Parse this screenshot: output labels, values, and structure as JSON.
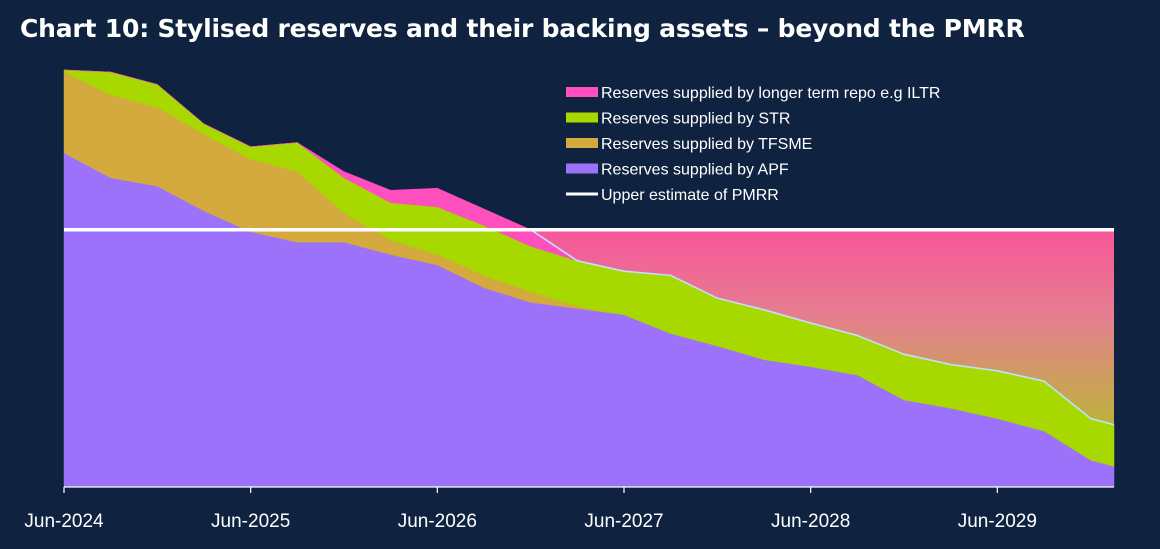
{
  "chart_data": {
    "type": "area",
    "title": "Chart 10: Stylised reserves and their backing assets – beyond the PMRR",
    "xlabel": "",
    "ylabel": "",
    "x_tick_labels": [
      "Jun-2024",
      "Jun-2025",
      "Jun-2026",
      "Jun-2027",
      "Jun-2028",
      "Jun-2029"
    ],
    "x_tick_positions": [
      0,
      12,
      24,
      36,
      48,
      60
    ],
    "x": [
      0,
      3,
      6,
      9,
      12,
      15,
      18,
      21,
      24,
      27,
      30,
      33,
      36,
      39,
      42,
      45,
      48,
      51,
      54,
      57,
      60,
      63,
      66,
      67.5
    ],
    "xlim": [
      0,
      67.5
    ],
    "ylim": [
      0,
      100
    ],
    "y_tick_labels": [],
    "stacked": true,
    "series": [
      {
        "name": "Reserves supplied by APF",
        "color": "#9b72f9",
        "values": [
          80.5,
          74.5,
          72.5,
          66.5,
          61.5,
          59,
          59,
          56,
          53.5,
          48,
          44.5,
          43,
          41.5,
          37,
          34,
          30.7,
          29,
          27,
          21,
          19,
          16.5,
          13.5,
          6.5,
          5
        ]
      },
      {
        "name": "Reserves supplied by TFSME",
        "color": "#d4aa3f",
        "values": [
          19.5,
          20,
          19,
          18.5,
          17.5,
          17,
          7,
          3.5,
          2.5,
          3,
          2.5,
          0.5,
          0,
          0,
          0,
          0,
          0,
          0,
          0,
          0,
          0,
          0,
          0,
          0
        ]
      },
      {
        "name": "Reserves supplied by STR",
        "color": "#a7d800",
        "values": [
          0.5,
          5.5,
          5.5,
          2.5,
          3,
          7,
          8.5,
          9,
          11.5,
          12,
          11,
          11,
          10.5,
          14,
          11.5,
          12,
          10.5,
          9.5,
          11,
          10.5,
          11.5,
          12,
          10,
          10
        ]
      },
      {
        "name": "Reserves supplied by longer term repo e.g ILTR",
        "color": "#ff4fbe",
        "values": [
          0,
          0,
          0,
          0,
          0,
          0,
          1.5,
          3,
          4.5,
          4,
          4,
          0,
          0,
          0,
          0,
          0,
          0,
          0,
          0,
          0,
          0,
          0,
          0,
          0
        ]
      }
    ],
    "reference_line": {
      "name": "Upper estimate of PMRR",
      "value": 62,
      "color": "#ffffff"
    },
    "grid": false,
    "legend_position": "top-right",
    "notes": "Gap between stacked supply and PMRR shaded with pink-to-olive gradient"
  }
}
